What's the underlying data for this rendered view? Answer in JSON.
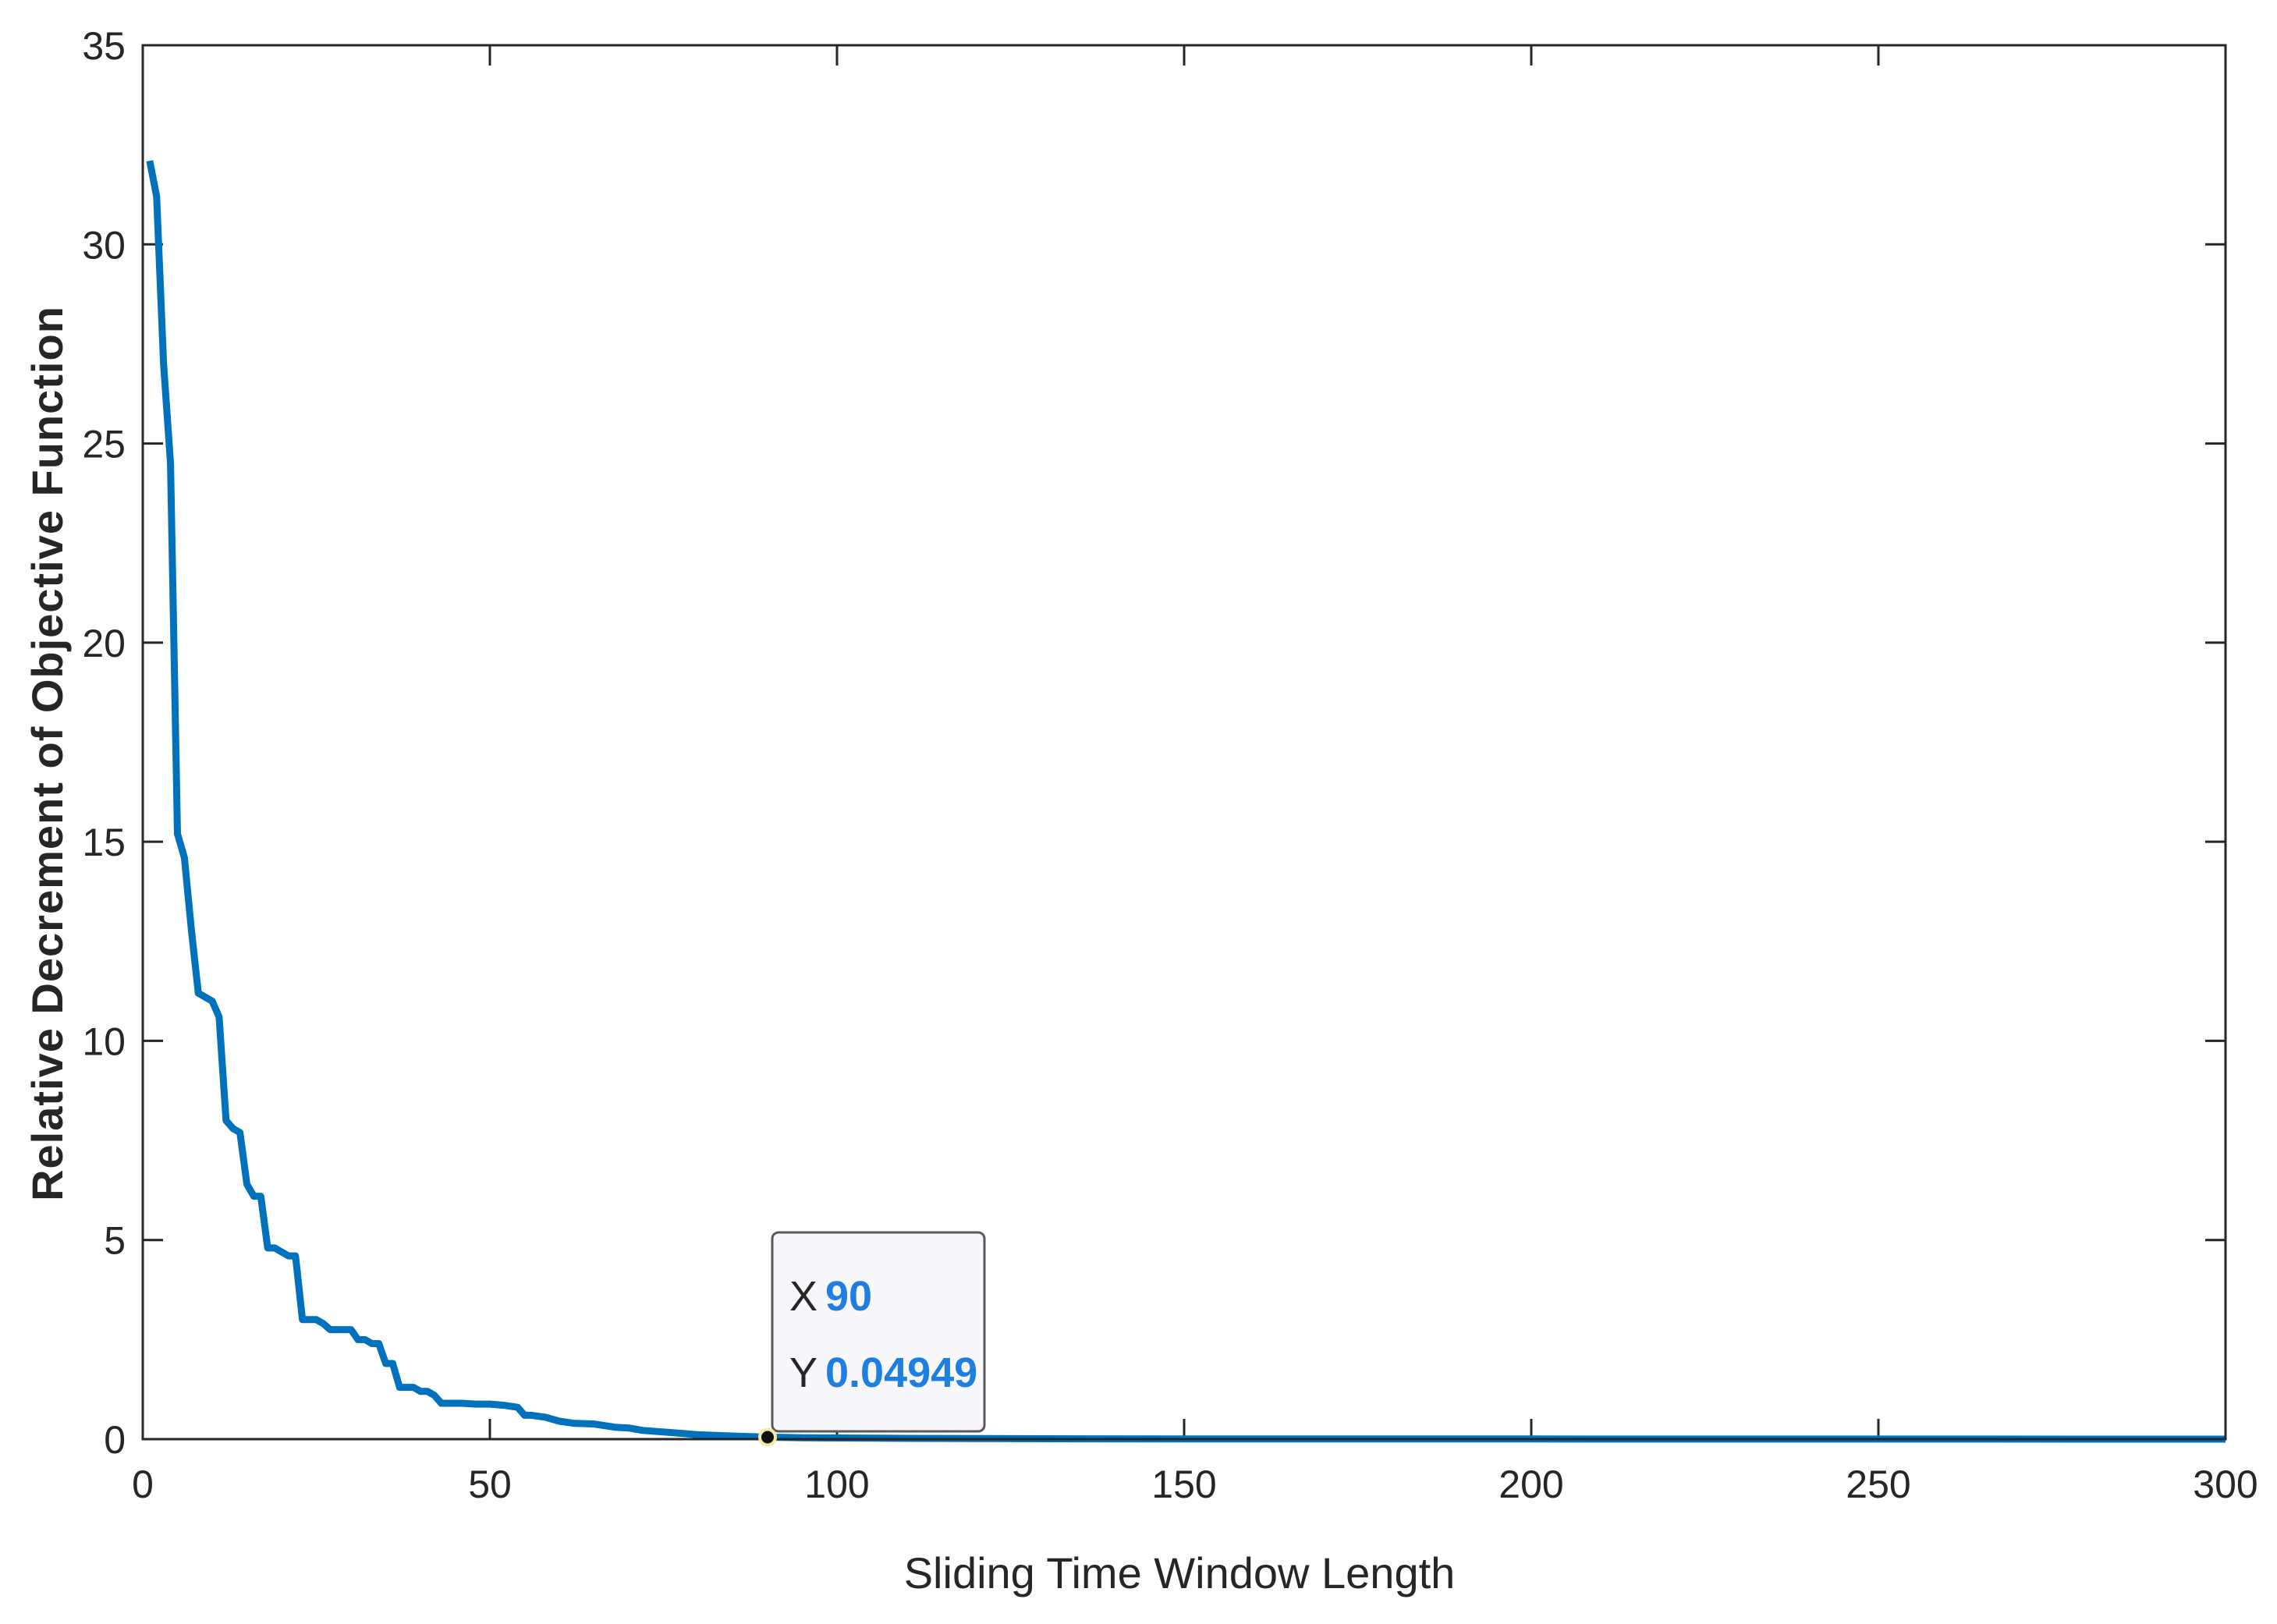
{
  "chart_data": {
    "type": "line",
    "xlabel": "Sliding Time Window Length",
    "ylabel": "Relative Decrement of Objective Function",
    "xlim": [
      0,
      300
    ],
    "ylim": [
      0,
      35
    ],
    "xticks": [
      0,
      50,
      100,
      150,
      200,
      250,
      300
    ],
    "yticks": [
      0,
      5,
      10,
      15,
      20,
      25,
      30,
      35
    ],
    "grid": false,
    "box": true,
    "line_color": "#0072BD",
    "series": [
      {
        "x": [
          1,
          2,
          3,
          4,
          5,
          6,
          7,
          8,
          9,
          10,
          11,
          12,
          13,
          14,
          15,
          16,
          17,
          18,
          19,
          20,
          21,
          22,
          23,
          24,
          25,
          26,
          27,
          28,
          29,
          30,
          31,
          32,
          33,
          34,
          35,
          36,
          37,
          38,
          39,
          40,
          41,
          42,
          43,
          44,
          45,
          46,
          48,
          50,
          52,
          54,
          55,
          56,
          58,
          60,
          62,
          65,
          68,
          70,
          72,
          75,
          78,
          80,
          83,
          86,
          88,
          90,
          95,
          100,
          110,
          120,
          130,
          150,
          200,
          250,
          300
        ],
        "y": [
          32.1,
          31.2,
          27.0,
          24.5,
          15.2,
          14.6,
          12.8,
          11.2,
          11.1,
          11.0,
          10.6,
          8.0,
          7.8,
          7.7,
          6.4,
          6.1,
          6.1,
          4.8,
          4.8,
          4.7,
          4.6,
          4.6,
          3.0,
          3.0,
          3.0,
          2.9,
          2.75,
          2.75,
          2.75,
          2.75,
          2.5,
          2.5,
          2.4,
          2.4,
          1.9,
          1.9,
          1.3,
          1.3,
          1.3,
          1.2,
          1.2,
          1.1,
          0.9,
          0.9,
          0.9,
          0.9,
          0.88,
          0.88,
          0.85,
          0.8,
          0.6,
          0.6,
          0.55,
          0.45,
          0.4,
          0.38,
          0.3,
          0.28,
          0.22,
          0.18,
          0.14,
          0.11,
          0.09,
          0.07,
          0.06,
          0.04949,
          0.035,
          0.03,
          0.02,
          0.015,
          0.01,
          0.006,
          0.003,
          0.001,
          0.0005
        ]
      }
    ],
    "datatip": {
      "x_label": "X",
      "x_value": "90",
      "y_label": "Y",
      "y_value": "0.04949",
      "x": 90,
      "y": 0.04949
    }
  }
}
